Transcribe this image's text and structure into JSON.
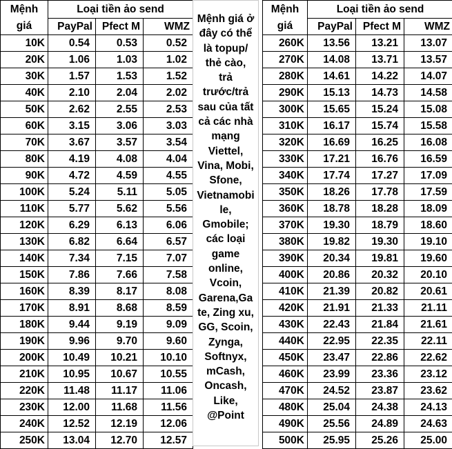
{
  "headers": {
    "denomination_line1": "Mệnh",
    "denomination_line2": "giá",
    "group": "Loại tiền ảo send",
    "columns": [
      "PayPal",
      "Pfect M",
      "WMZ"
    ]
  },
  "left_rows": [
    [
      "10K",
      "0.54",
      "0.53",
      "0.52"
    ],
    [
      "20K",
      "1.06",
      "1.03",
      "1.02"
    ],
    [
      "30K",
      "1.57",
      "1.53",
      "1.52"
    ],
    [
      "40K",
      "2.10",
      "2.04",
      "2.02"
    ],
    [
      "50K",
      "2.62",
      "2.55",
      "2.53"
    ],
    [
      "60K",
      "3.15",
      "3.06",
      "3.03"
    ],
    [
      "70K",
      "3.67",
      "3.57",
      "3.54"
    ],
    [
      "80K",
      "4.19",
      "4.08",
      "4.04"
    ],
    [
      "90K",
      "4.72",
      "4.59",
      "4.55"
    ],
    [
      "100K",
      "5.24",
      "5.11",
      "5.05"
    ],
    [
      "110K",
      "5.77",
      "5.62",
      "5.56"
    ],
    [
      "120K",
      "6.29",
      "6.13",
      "6.06"
    ],
    [
      "130K",
      "6.82",
      "6.64",
      "6.57"
    ],
    [
      "140K",
      "7.34",
      "7.15",
      "7.07"
    ],
    [
      "150K",
      "7.86",
      "7.66",
      "7.58"
    ],
    [
      "160K",
      "8.39",
      "8.17",
      "8.08"
    ],
    [
      "170K",
      "8.91",
      "8.68",
      "8.59"
    ],
    [
      "180K",
      "9.44",
      "9.19",
      "9.09"
    ],
    [
      "190K",
      "9.96",
      "9.70",
      "9.60"
    ],
    [
      "200K",
      "10.49",
      "10.21",
      "10.10"
    ],
    [
      "210K",
      "10.95",
      "10.67",
      "10.55"
    ],
    [
      "220K",
      "11.48",
      "11.17",
      "11.06"
    ],
    [
      "230K",
      "12.00",
      "11.68",
      "11.56"
    ],
    [
      "240K",
      "12.52",
      "12.19",
      "12.06"
    ],
    [
      "250K",
      "13.04",
      "12.70",
      "12.57"
    ]
  ],
  "right_rows": [
    [
      "260K",
      "13.56",
      "13.21",
      "13.07"
    ],
    [
      "270K",
      "14.08",
      "13.71",
      "13.57"
    ],
    [
      "280K",
      "14.61",
      "14.22",
      "14.07"
    ],
    [
      "290K",
      "15.13",
      "14.73",
      "14.58"
    ],
    [
      "300K",
      "15.65",
      "15.24",
      "15.08"
    ],
    [
      "310K",
      "16.17",
      "15.74",
      "15.58"
    ],
    [
      "320K",
      "16.69",
      "16.25",
      "16.08"
    ],
    [
      "330K",
      "17.21",
      "16.76",
      "16.59"
    ],
    [
      "340K",
      "17.74",
      "17.27",
      "17.09"
    ],
    [
      "350K",
      "18.26",
      "17.78",
      "17.59"
    ],
    [
      "360K",
      "18.78",
      "18.28",
      "18.09"
    ],
    [
      "370K",
      "19.30",
      "18.79",
      "18.60"
    ],
    [
      "380K",
      "19.82",
      "19.30",
      "19.10"
    ],
    [
      "390K",
      "20.34",
      "19.81",
      "19.60"
    ],
    [
      "400K",
      "20.86",
      "20.32",
      "20.10"
    ],
    [
      "410K",
      "21.39",
      "20.82",
      "20.61"
    ],
    [
      "420K",
      "21.91",
      "21.33",
      "21.11"
    ],
    [
      "430K",
      "22.43",
      "21.84",
      "21.61"
    ],
    [
      "440K",
      "22.95",
      "22.35",
      "22.11"
    ],
    [
      "450K",
      "23.47",
      "22.86",
      "22.62"
    ],
    [
      "460K",
      "23.99",
      "23.36",
      "23.12"
    ],
    [
      "470K",
      "24.52",
      "23.87",
      "23.62"
    ],
    [
      "480K",
      "25.04",
      "24.38",
      "24.13"
    ],
    [
      "490K",
      "25.56",
      "24.89",
      "24.63"
    ],
    [
      "500K",
      "25.95",
      "25.26",
      "25.00"
    ]
  ],
  "note_lines": [
    "Mệnh giá ở",
    "đây có thể",
    "là topup/",
    "thẻ cào,",
    "trả",
    "trước/trả",
    "sau của tất",
    "cả các nhà",
    "mạng",
    "Viettel,",
    "Vina, Mobi,",
    "Sfone,",
    "Vietnamobi",
    "le,",
    "Gmobile;",
    "các loại",
    "game",
    "online,",
    "Vcoin,",
    "Garena,Ga",
    "te, Zing xu,",
    "GG, Scoin,",
    "Zynga,",
    "Softnyx,",
    "mCash,",
    "Oncash,",
    "Like,",
    "@Point"
  ]
}
